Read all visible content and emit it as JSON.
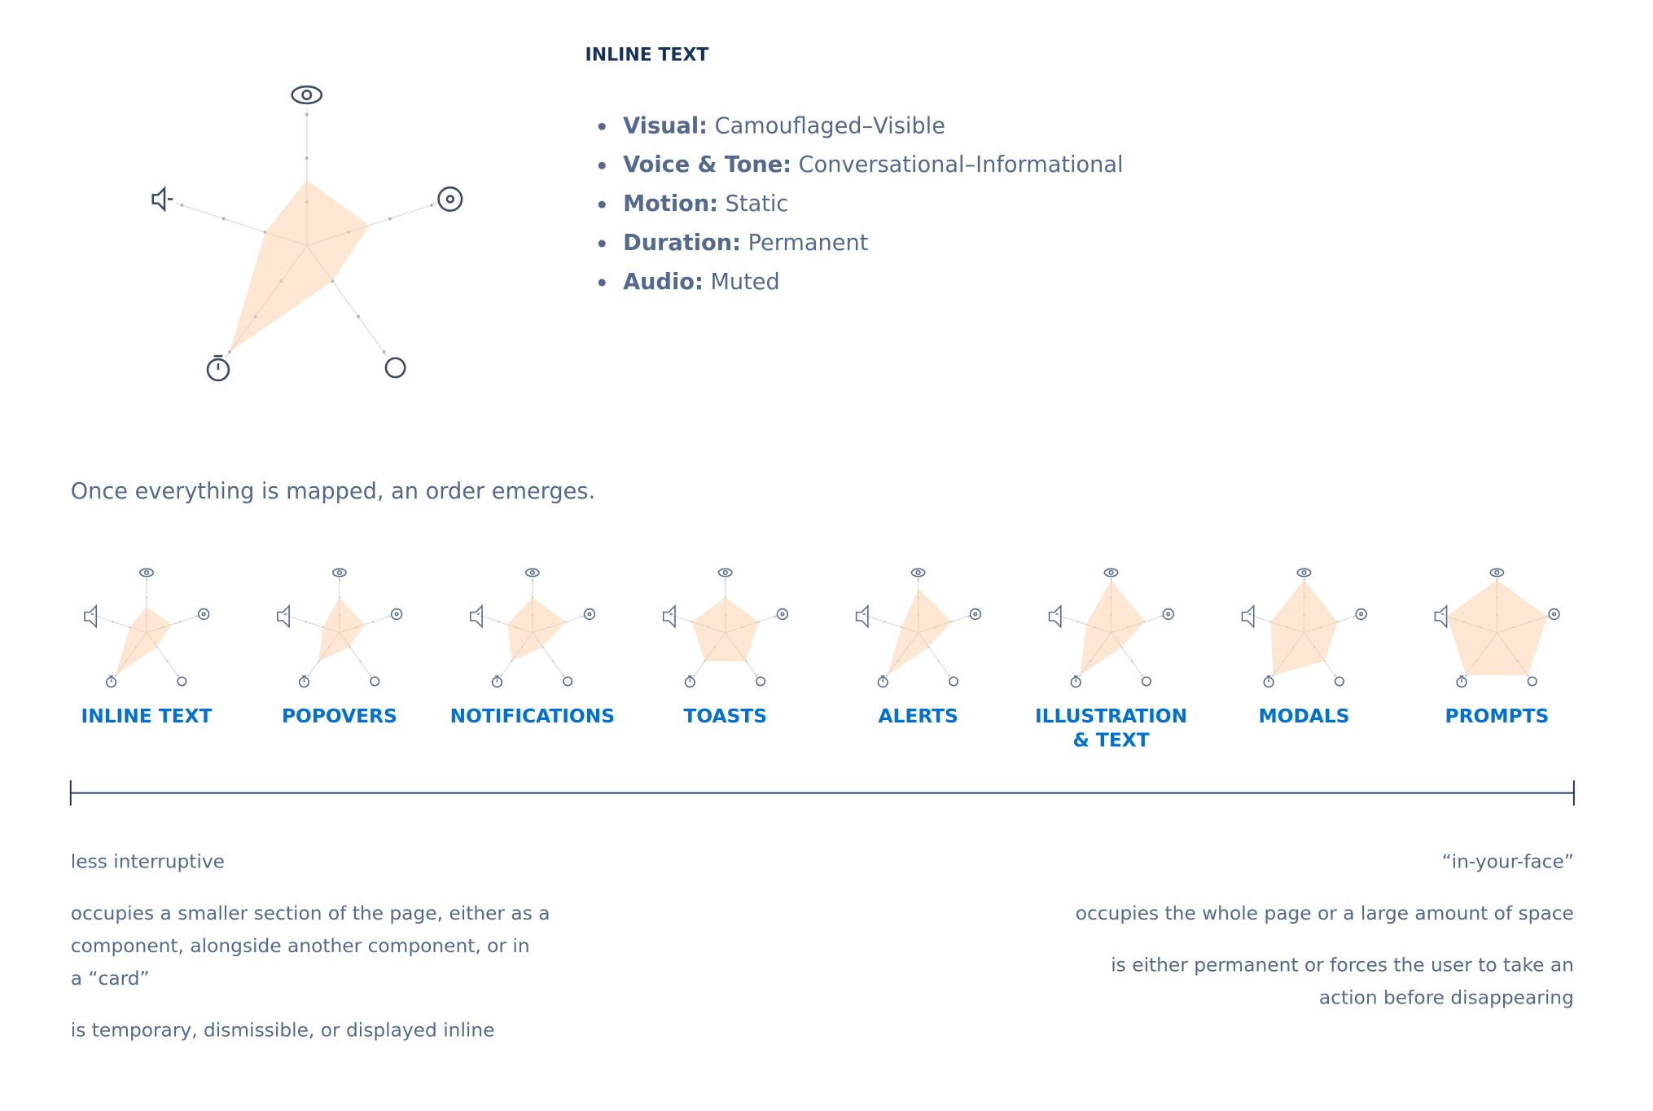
{
  "detail": {
    "title": "INLINE TEXT",
    "bullets": [
      {
        "label": "Visual:",
        "value": "Camouflaged–Visible"
      },
      {
        "label": "Voice & Tone:",
        "value": "Conversational–Informational"
      },
      {
        "label": "Motion:",
        "value": "Static"
      },
      {
        "label": "Duration:",
        "value": "Permanent"
      },
      {
        "label": "Audio:",
        "value": "Muted"
      }
    ],
    "radar": [
      1.5,
      1.5,
      1,
      3,
      1
    ]
  },
  "radar_max": 3,
  "intro": "Once everything is mapped, an order emerges.",
  "patterns": [
    {
      "label": [
        "INLINE TEXT"
      ],
      "radar": [
        1.5,
        1.5,
        1,
        3,
        1
      ]
    },
    {
      "label": [
        "POPOVERS"
      ],
      "radar": [
        2,
        1.5,
        1,
        2,
        1
      ]
    },
    {
      "label": [
        "NOTIFICATIONS"
      ],
      "radar": [
        2,
        2,
        1,
        2,
        1.5
      ]
    },
    {
      "label": [
        "TOASTS"
      ],
      "radar": [
        2,
        2,
        2,
        2,
        2
      ]
    },
    {
      "label": [
        "ALERTS"
      ],
      "radar": [
        2.5,
        2,
        1,
        3,
        1
      ]
    },
    {
      "label": [
        "ILLUSTRATION",
        "& TEXT"
      ],
      "radar": [
        3,
        2,
        1,
        3,
        1.5
      ]
    },
    {
      "label": [
        "MODALS"
      ],
      "radar": [
        3,
        2,
        2,
        3,
        2
      ]
    },
    {
      "label": [
        "PROMPTS"
      ],
      "radar": [
        3,
        3,
        3,
        3,
        3
      ]
    }
  ],
  "scale": {
    "left": {
      "title": "less interruptive",
      "notes": [
        [
          "occupies a smaller section of the page, either as a",
          "component, alongside another component, or in",
          "a “card”"
        ],
        [
          "is temporary, dismissible, or displayed inline"
        ]
      ]
    },
    "right": {
      "title": "“in-your-face”",
      "notes": [
        [
          "occupies the whole page or a large amount of space"
        ],
        [
          "is either permanent or forces the user to take an",
          "action before disappearing"
        ]
      ]
    }
  }
}
